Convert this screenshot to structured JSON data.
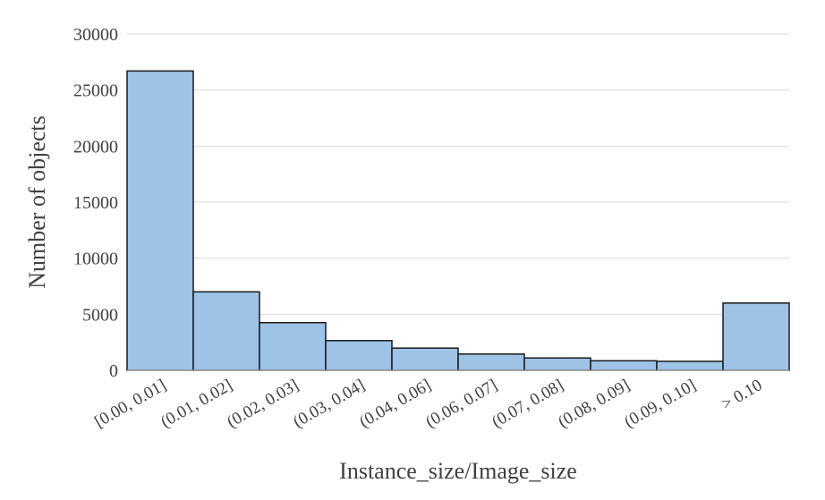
{
  "chart_data": {
    "type": "bar",
    "title": "",
    "xlabel": "Instance_size/Image_size",
    "ylabel": "Number of objects",
    "categories": [
      "[0.00, 0.01]",
      "(0.01, 0.02]",
      "(0.02, 0.03]",
      "(0.03, 0.04]",
      "(0.04, 0.06]",
      "(0.06, 0.07]",
      "(0.07, 0.08]",
      "(0.08, 0.09]",
      "(0.09, 0.10]",
      "> 0.10"
    ],
    "values": [
      26700,
      7000,
      4250,
      2650,
      1980,
      1450,
      1100,
      850,
      800,
      6000
    ],
    "ylim": [
      0,
      30000
    ],
    "yticks": [
      0,
      5000,
      10000,
      15000,
      20000,
      25000,
      30000
    ],
    "grid": true,
    "legend": "none",
    "bar_color": "#9dc3e6",
    "bar_edge_color": "#1a1a1a",
    "grid_color": "#d9d9d9",
    "text_color": "#404040"
  }
}
